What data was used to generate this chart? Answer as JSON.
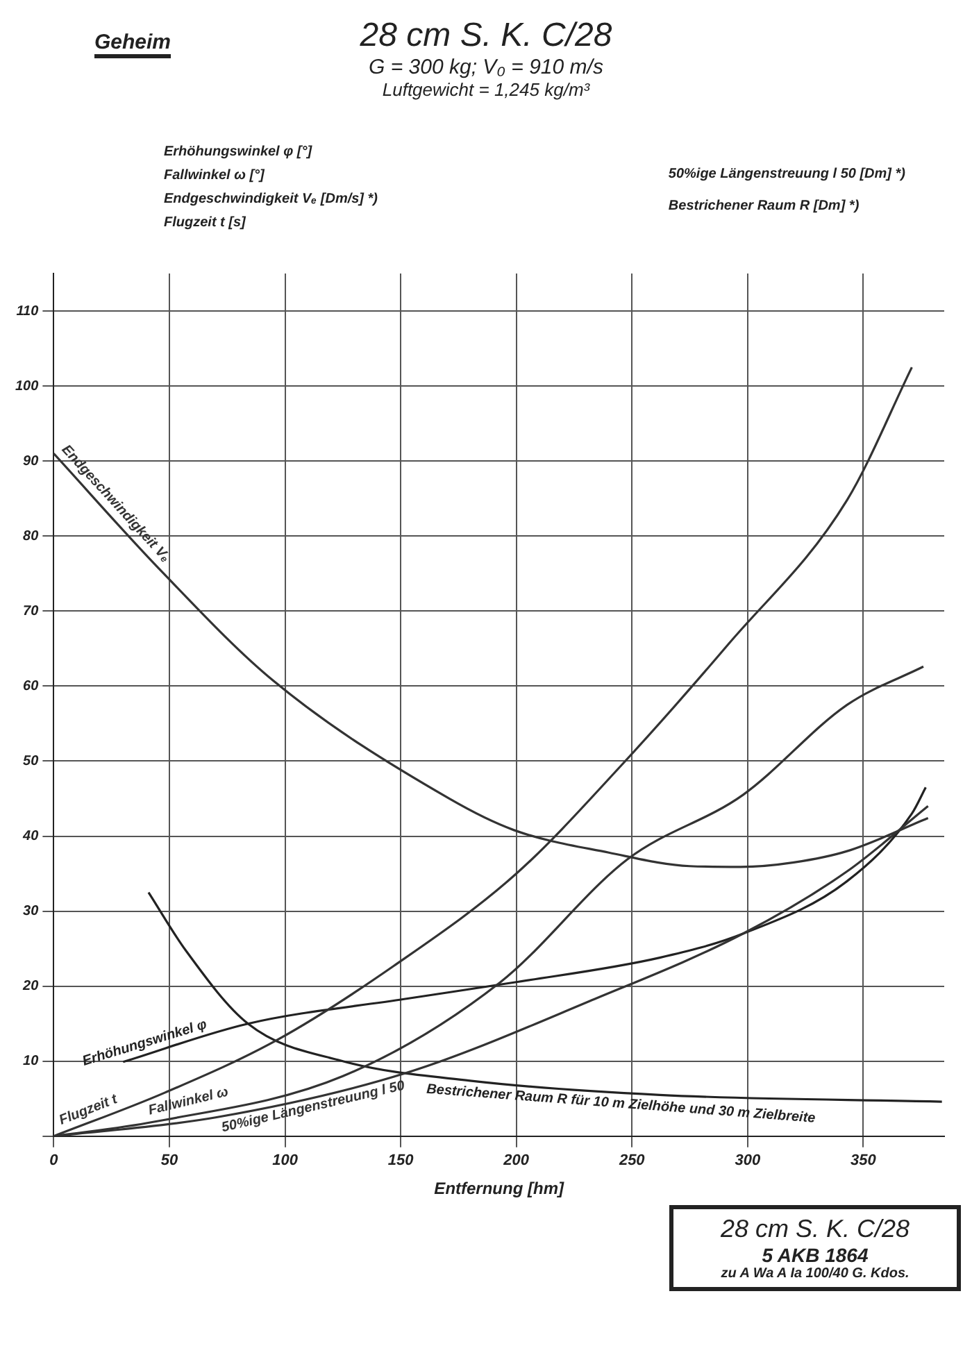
{
  "chart_data": {
    "type": "line",
    "title": "28 cm S. K. C/28",
    "subtitle": "G = 300 kg; V₀ = 910 m/s",
    "xlabel": "Entfernung [hm]",
    "annotations": [
      "Geheim",
      "Luftgewicht = 1,245 kg/m³",
      "Erhöhungswinkel φ [°]",
      "Fallwinkel ω [°]",
      "Endgeschwindigkeit Vₑ [Dm/s] *)",
      "Flugzeit t [s]",
      "50%ige Längenstreuung l 50 [Dm] *)",
      "Bestrichener Raum R [Dm] *)",
      "28 cm S. K. C/28",
      "5 AKB 1864",
      "zu A Wa A Ia 100/40 G. Kdos."
    ],
    "xlim": [
      0,
      385
    ],
    "xticks": [
      0,
      50,
      100,
      150,
      200,
      250,
      300,
      350
    ],
    "ylim": [
      0,
      115
    ],
    "yticks": [
      {
        "value": 0,
        "label": null
      },
      10,
      20,
      30,
      40,
      50,
      60,
      70,
      80,
      90,
      100,
      110
    ],
    "grid": true,
    "legend": false,
    "marker": "none",
    "line_style": "solid",
    "series": [
      {
        "name": "Endgeschwindigkeit Vₑ",
        "color": "#333333",
        "x": [
          0,
          46,
          95,
          171,
          199,
          240,
          275,
          297,
          320,
          343,
          378
        ],
        "values": [
          91,
          75.5,
          60.7,
          45,
          40.8,
          37.8,
          36,
          35.9,
          36.5,
          38,
          42.4
        ]
      },
      {
        "name": "Flugzeit t",
        "color": "#333333",
        "x": [
          0,
          48,
          97,
          147,
          200,
          245,
          292,
          343,
          371
        ],
        "values": [
          0,
          5.8,
          12.9,
          22.7,
          35,
          49.3,
          65.7,
          84.8,
          102.5
        ]
      },
      {
        "name": "Fallwinkel ω",
        "color": "#333333",
        "x": [
          0,
          43,
          125,
          193,
          248,
          298,
          343,
          376
        ],
        "values": [
          0,
          1.9,
          8,
          20.5,
          36.9,
          45.5,
          57.5,
          62.6
        ]
      },
      {
        "name": "50%ige Längenstreuung l 50",
        "color": "#333333",
        "x": [
          0,
          70,
          152,
          234,
          298,
          343,
          378
        ],
        "values": [
          0,
          2.5,
          8.4,
          18.3,
          27,
          35.3,
          44
        ]
      },
      {
        "name": "Erhöhungswinkel φ",
        "color": "#222222",
        "x": [
          30,
          84,
          152,
          199,
          262,
          298,
          343,
          371,
          377
        ],
        "values": [
          9.9,
          15,
          18.3,
          20.5,
          23.8,
          27,
          34,
          43,
          46.5
        ]
      },
      {
        "name": "Bestrichener Raum R für 10 m Zielhöhe und 30 m Zielbreite",
        "color": "#222222",
        "x": [
          41,
          57,
          84,
          125,
          180,
          262,
          384
        ],
        "values": [
          32.5,
          24.8,
          15,
          10,
          7.4,
          5.5,
          4.6
        ]
      }
    ]
  }
}
